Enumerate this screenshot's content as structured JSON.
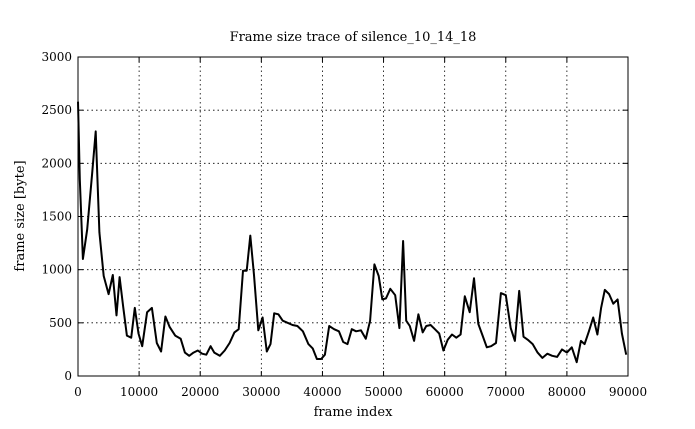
{
  "chart_data": {
    "type": "line",
    "title": "Frame size trace of silence_10_14_18",
    "xlabel": "frame index",
    "ylabel": "frame size [byte]",
    "xlim": [
      0,
      90000
    ],
    "ylim": [
      0,
      3000
    ],
    "xticks": [
      0,
      10000,
      20000,
      30000,
      40000,
      50000,
      60000,
      70000,
      80000,
      90000
    ],
    "yticks": [
      0,
      500,
      1000,
      1500,
      2000,
      2500,
      3000
    ],
    "grid": true,
    "legend": "none",
    "line_color": "#000000",
    "series": [
      {
        "x": [
          0,
          300,
          800,
          1500,
          2300,
          2900,
          3500,
          4200,
          5000,
          5700,
          6300,
          6800,
          7400,
          8000,
          8700,
          9300,
          9900,
          10500,
          11300,
          12100,
          12900,
          13600,
          14300,
          15000,
          15900,
          16800,
          17500,
          18200,
          18900,
          19600,
          20300,
          21000,
          21700,
          22300,
          23200,
          24000,
          24800,
          25600,
          26300,
          27000,
          27600,
          28200,
          28800,
          29500,
          30200,
          30900,
          31500,
          32100,
          32800,
          33500,
          34300,
          35100,
          35900,
          36800,
          37700,
          38400,
          39100,
          39800,
          40400,
          41100,
          41900,
          42700,
          43400,
          44100,
          44800,
          45500,
          46300,
          47100,
          47800,
          48500,
          49200,
          49800,
          50400,
          51100,
          51900,
          52600,
          53200,
          53700,
          54300,
          55000,
          55700,
          56400,
          57000,
          57700,
          58400,
          59100,
          59800,
          60500,
          61200,
          61900,
          62600,
          63300,
          64100,
          64800,
          65500,
          66200,
          66900,
          67600,
          68400,
          69200,
          70000,
          70800,
          71500,
          72200,
          72900,
          73600,
          74400,
          75200,
          76000,
          76800,
          77600,
          78400,
          79200,
          80000,
          80800,
          81600,
          82300,
          82900,
          83600,
          84300,
          85000,
          85600,
          86200,
          86900,
          87600,
          88300,
          89000,
          89700
        ],
        "y": [
          2580,
          1850,
          1100,
          1380,
          1900,
          2300,
          1350,
          940,
          770,
          950,
          570,
          930,
          650,
          380,
          360,
          640,
          400,
          280,
          600,
          640,
          310,
          230,
          560,
          460,
          380,
          350,
          220,
          190,
          220,
          240,
          210,
          200,
          280,
          220,
          190,
          240,
          310,
          410,
          440,
          990,
          990,
          1320,
          950,
          430,
          550,
          230,
          300,
          590,
          580,
          520,
          500,
          480,
          470,
          420,
          300,
          260,
          160,
          160,
          200,
          470,
          440,
          420,
          320,
          300,
          440,
          420,
          430,
          350,
          520,
          1050,
          940,
          720,
          730,
          820,
          760,
          450,
          1270,
          520,
          470,
          330,
          580,
          410,
          470,
          480,
          440,
          400,
          240,
          340,
          390,
          360,
          390,
          750,
          600,
          920,
          490,
          380,
          270,
          280,
          310,
          780,
          760,
          450,
          330,
          800,
          370,
          340,
          300,
          220,
          170,
          210,
          190,
          180,
          250,
          220,
          270,
          130,
          330,
          300,
          420,
          550,
          390,
          640,
          810,
          770,
          680,
          720,
          400,
          200
        ]
      }
    ]
  }
}
